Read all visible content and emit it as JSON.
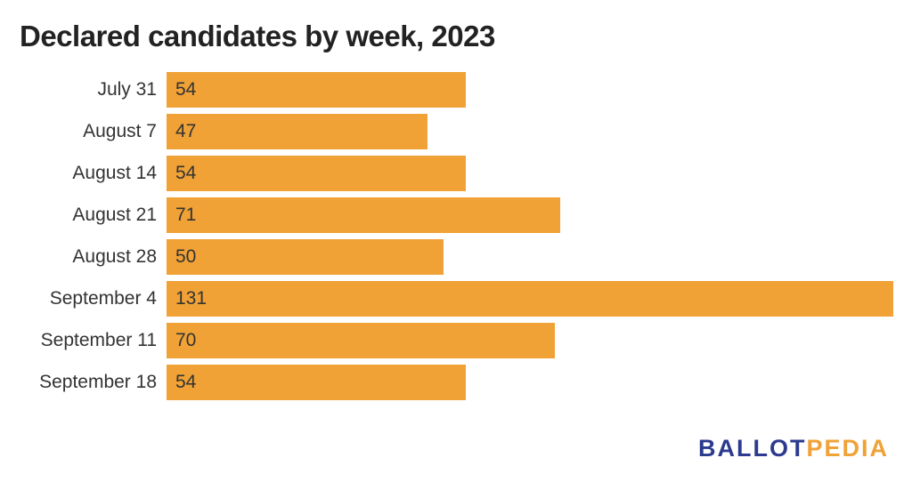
{
  "colors": {
    "bar": "#f0a236",
    "text": "#333333",
    "logo_primary": "#2b3a8f",
    "logo_accent": "#f0a236"
  },
  "logo": {
    "part1": "BALLOT",
    "part2": "PEDIA"
  },
  "chart_data": {
    "type": "bar",
    "orientation": "horizontal",
    "title": "Declared candidates by week, 2023",
    "xlabel": "",
    "ylabel": "",
    "categories": [
      "July 31",
      "August 7",
      "August 14",
      "August 21",
      "August 28",
      "September 4",
      "September 11",
      "September 18"
    ],
    "values": [
      54,
      47,
      54,
      71,
      50,
      131,
      70,
      54
    ],
    "xlim": [
      0,
      131
    ],
    "grid": false,
    "data_labels": true
  }
}
